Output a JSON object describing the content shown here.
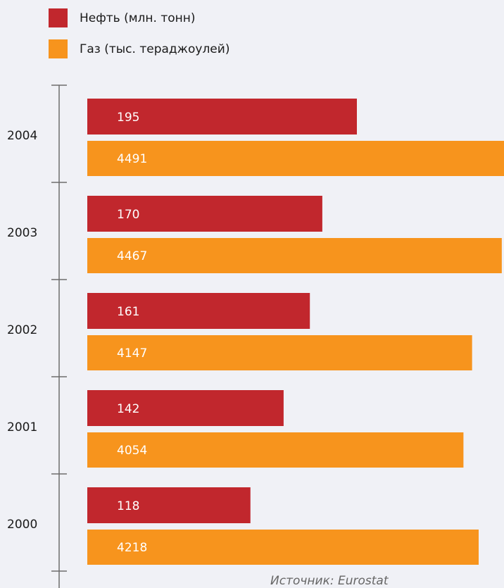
{
  "colors": {
    "oil": "#c1272d",
    "gas": "#f7941d",
    "axis": "#6d6d6d",
    "background": "#f0f1f6"
  },
  "chart_data": {
    "type": "bar",
    "orientation": "horizontal",
    "categories": [
      "2004",
      "2003",
      "2002",
      "2001",
      "2000"
    ],
    "series": [
      {
        "name": "Нефть (млн. тонн)",
        "values": [
          195,
          170,
          161,
          142,
          118
        ]
      },
      {
        "name": "Газ (тыс. тераджоулей)",
        "values": [
          4491,
          4467,
          4147,
          4054,
          4218
        ]
      }
    ],
    "legend": "top-left",
    "grid": false
  },
  "source": {
    "label": "Источник: ",
    "name": "Eurostat"
  }
}
